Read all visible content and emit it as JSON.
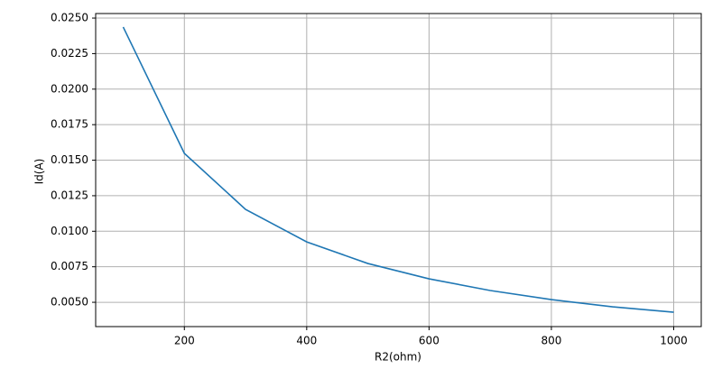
{
  "chart_data": {
    "type": "line",
    "x_label": "R2(ohm)",
    "y_label": "Id(A)",
    "x": [
      100,
      200,
      300,
      400,
      500,
      600,
      700,
      800,
      900,
      1000
    ],
    "series": [
      {
        "name": "Id",
        "color": "#1f77b4",
        "values": [
          0.02437,
          0.01548,
          0.01154,
          0.00925,
          0.00773,
          0.00665,
          0.00583,
          0.00519,
          0.00468,
          0.0043
        ]
      }
    ],
    "xlim": [
      55,
      1045
    ],
    "ylim": [
      0.00329,
      0.02532
    ],
    "xticks": [
      200,
      400,
      600,
      800,
      1000
    ],
    "yticks": [
      {
        "value": 0.005,
        "label": "0.0050"
      },
      {
        "value": 0.0075,
        "label": "0.0075"
      },
      {
        "value": 0.01,
        "label": "0.0100"
      },
      {
        "value": 0.0125,
        "label": "0.0125"
      },
      {
        "value": 0.015,
        "label": "0.0150"
      },
      {
        "value": 0.0175,
        "label": "0.0175"
      },
      {
        "value": 0.02,
        "label": "0.0200"
      },
      {
        "value": 0.0225,
        "label": "0.0225"
      },
      {
        "value": 0.025,
        "label": "0.0250"
      }
    ],
    "grid": true
  }
}
